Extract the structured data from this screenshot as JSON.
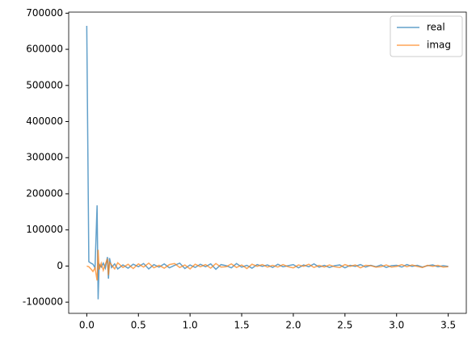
{
  "chart_data": {
    "type": "line",
    "x": [
      0,
      0.02,
      0.04,
      0.06,
      0.08,
      0.1,
      0.11,
      0.12,
      0.14,
      0.16,
      0.18,
      0.2,
      0.21,
      0.22,
      0.24,
      0.27,
      0.3,
      0.35,
      0.4,
      0.45,
      0.5,
      0.55,
      0.6,
      0.65,
      0.7,
      0.75,
      0.8,
      0.85,
      0.9,
      0.95,
      1.0,
      1.05,
      1.1,
      1.15,
      1.2,
      1.25,
      1.3,
      1.35,
      1.4,
      1.45,
      1.5,
      1.55,
      1.6,
      1.65,
      1.7,
      1.75,
      1.8,
      1.85,
      1.9,
      1.95,
      2.0,
      2.05,
      2.1,
      2.15,
      2.2,
      2.25,
      2.3,
      2.35,
      2.4,
      2.45,
      2.5,
      2.55,
      2.6,
      2.65,
      2.7,
      2.75,
      2.8,
      2.85,
      2.9,
      2.95,
      3.0,
      3.05,
      3.1,
      3.15,
      3.2,
      3.25,
      3.3,
      3.35,
      3.4,
      3.45,
      3.5
    ],
    "series": [
      {
        "name": "real",
        "color": "#1f77b4",
        "values": [
          665000,
          12000,
          8000,
          5000,
          -5000,
          168000,
          -92000,
          5000,
          -3000,
          8000,
          -6000,
          25000,
          -35000,
          22000,
          -4000,
          6000,
          -8000,
          3000,
          -6000,
          5000,
          -2000,
          7000,
          -8000,
          4000,
          -3000,
          6000,
          -5000,
          2000,
          8000,
          -7000,
          3000,
          -4000,
          5000,
          -2000,
          6000,
          -9000,
          4000,
          1000,
          -5000,
          7000,
          -3000,
          2000,
          -6000,
          4000,
          -1000,
          3000,
          -4000,
          5000,
          -2000,
          1000,
          4000,
          -5000,
          3000,
          -2000,
          6000,
          -3000,
          2000,
          -4000,
          1000,
          3000,
          -5000,
          2000,
          -1000,
          4000,
          -3000,
          2000,
          -2000,
          3000,
          -4000,
          1000,
          2000,
          -3000,
          4000,
          -1000,
          2000,
          -3000,
          1000,
          3000,
          -2000,
          1000,
          -1000
        ]
      },
      {
        "name": "imag",
        "color": "#ff7f0e",
        "values": [
          0,
          -2000,
          -8000,
          -15000,
          -5000,
          -40000,
          45000,
          -10000,
          8000,
          -12000,
          5000,
          20000,
          -25000,
          10000,
          3000,
          -8000,
          9000,
          -4000,
          5000,
          -7000,
          6000,
          -3000,
          8000,
          -5000,
          2000,
          -6000,
          4000,
          7000,
          -4000,
          3000,
          -8000,
          5000,
          -2000,
          4000,
          -6000,
          7000,
          -3000,
          -2000,
          6000,
          -4000,
          3000,
          -7000,
          5000,
          -1000,
          4000,
          -3000,
          2000,
          -3000,
          4000,
          -2000,
          -5000,
          3000,
          -1000,
          5000,
          -4000,
          2000,
          -3000,
          3000,
          -2000,
          -4000,
          4000,
          -1000,
          3000,
          -5000,
          2000,
          1000,
          -3000,
          -2000,
          3000,
          -3000,
          -1000,
          4000,
          -2000,
          3000,
          -1000,
          -4000,
          2000,
          -1000,
          2000,
          -3000,
          -2000
        ]
      }
    ],
    "alpha": 0.7,
    "xlim": [
      -0.175,
      3.675
    ],
    "xticks": [
      {
        "value": 0,
        "label": "0.0"
      },
      0.5,
      {
        "value": 1,
        "label": "1.0"
      },
      1.5,
      {
        "value": 2,
        "label": "2.0"
      },
      2.5,
      {
        "value": 3,
        "label": "3.0"
      },
      3.5
    ],
    "ylim": [
      -131000,
      703000
    ],
    "yticks": [
      -100000,
      0,
      100000,
      200000,
      300000,
      400000,
      500000,
      600000,
      700000
    ],
    "legend": "upper right"
  }
}
